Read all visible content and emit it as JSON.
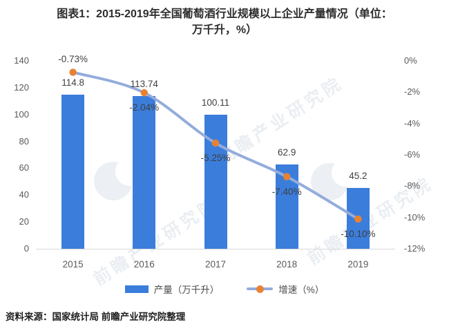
{
  "title_line1": "图表1：2015-2019年全国葡萄酒行业规模以上企业产量情况（单位：",
  "title_line2": "万千升，%）",
  "source": "资料来源：国家统计局  前瞻产业研究院整理",
  "watermark": "前瞻产业研究院",
  "legend": {
    "bar_label": "产量（万千升）",
    "line_label": "增速（%）"
  },
  "colors": {
    "bar": "#3b7ddb",
    "line": "#93acdc",
    "marker": "#e88232",
    "data_label": "#3f3f3f",
    "axis_label": "#595959",
    "baseline": "#d9d9d9"
  },
  "chart_data": {
    "type": "bar+line combo",
    "title": "图表1：2015-2019年全国葡萄酒行业规模以上企业产量情况（单位：万千升，%）",
    "categories": [
      "2015",
      "2016",
      "2017",
      "2018",
      "2019"
    ],
    "series": [
      {
        "name": "产量（万千升）",
        "type": "bar",
        "axis": "left",
        "values": [
          114.8,
          113.74,
          100.11,
          62.9,
          45.2
        ],
        "labels": [
          "114.8",
          "113.74",
          "100.11",
          "62.9",
          "45.2"
        ]
      },
      {
        "name": "增速（%）",
        "type": "line",
        "axis": "right",
        "values": [
          -0.73,
          -2.04,
          -5.25,
          -7.4,
          -10.1
        ],
        "labels": [
          "-0.73%",
          "-2.04%",
          "-5.25%",
          "-7.40%",
          "-10.10%"
        ]
      }
    ],
    "left_axis": {
      "min": 0,
      "max": 140,
      "step": 20,
      "ticks": [
        "0",
        "20",
        "40",
        "60",
        "80",
        "100",
        "120",
        "140"
      ]
    },
    "right_axis": {
      "min": -12,
      "max": 0,
      "step": 2,
      "ticks": [
        "0%",
        "-2%",
        "-4%",
        "-6%",
        "-8%",
        "-10%",
        "-12%"
      ]
    },
    "grid": false,
    "legend_position": "bottom"
  }
}
